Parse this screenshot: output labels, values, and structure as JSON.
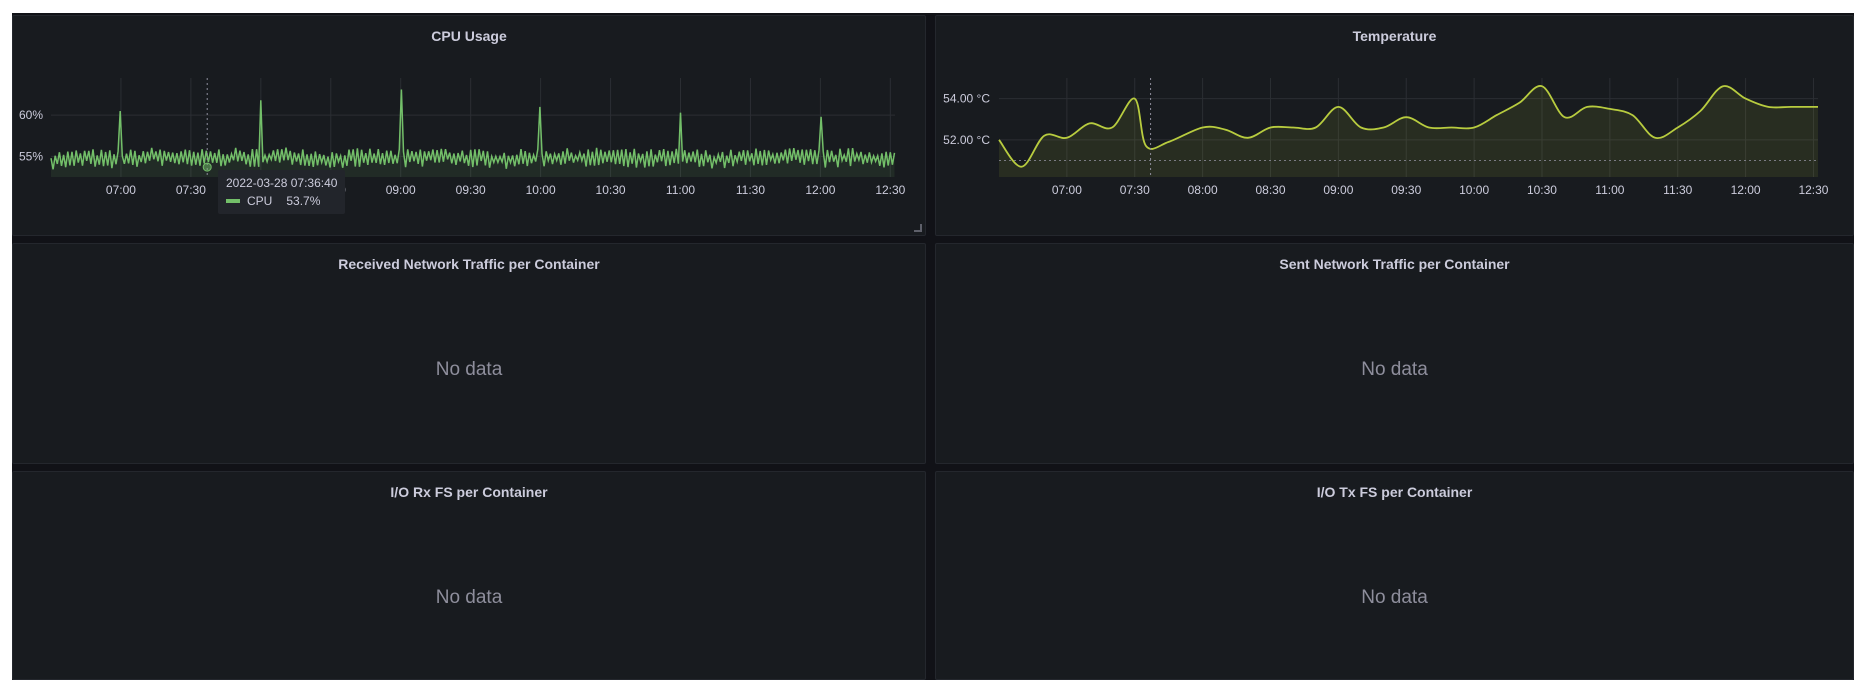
{
  "colors": {
    "cpu": "#73bf69",
    "temperature": "#b8cc3f",
    "background": "#111217",
    "panel": "#181b1f"
  },
  "x_ticks": [
    "07:00",
    "07:30",
    "08:00",
    "08:30",
    "09:00",
    "09:30",
    "10:00",
    "10:30",
    "11:00",
    "11:30",
    "12:00",
    "12:30"
  ],
  "panels": {
    "cpu": {
      "title": "CPU Usage",
      "tooltip": {
        "time": "2022-03-28 07:36:40",
        "series": "CPU",
        "value": "53.7%"
      }
    },
    "temperature": {
      "title": "Temperature"
    },
    "rx_net": {
      "title": "Received Network Traffic per Container",
      "empty": "No data"
    },
    "tx_net": {
      "title": "Sent Network Traffic per Container",
      "empty": "No data"
    },
    "io_rx": {
      "title": "I/O Rx FS per Container",
      "empty": "No data"
    },
    "io_tx": {
      "title": "I/O Tx FS per Container",
      "empty": "No data"
    }
  },
  "chart_data": [
    {
      "type": "line",
      "title": "CPU Usage",
      "y_ticks": [
        "60%",
        "55%"
      ],
      "ylim": [
        52.5,
        64.5
      ],
      "xlim": [
        "06:30",
        "12:32"
      ],
      "grid": true,
      "series": [
        {
          "name": "CPU",
          "x": [
            "06:30",
            "06:45",
            "07:00",
            "07:15",
            "07:30",
            "07:45",
            "08:00",
            "08:15",
            "08:30",
            "08:45",
            "09:00",
            "09:15",
            "09:30",
            "09:45",
            "10:00",
            "10:15",
            "10:30",
            "10:45",
            "11:00",
            "11:15",
            "11:30",
            "11:45",
            "12:00",
            "12:15",
            "12:30"
          ],
          "values": [
            54.5,
            54.8,
            54.6,
            55.0,
            54.7,
            54.9,
            54.8,
            55.1,
            54.6,
            54.9,
            54.7,
            55.0,
            54.8,
            54.6,
            54.9,
            54.8,
            55.0,
            54.7,
            54.9,
            54.6,
            54.8,
            55.0,
            54.7,
            54.9,
            54.6
          ],
          "noise": 2.5
        }
      ],
      "spikes": [
        {
          "x": "07:00",
          "value": 60.5
        },
        {
          "x": "08:00",
          "value": 61.8
        },
        {
          "x": "09:00",
          "value": 63.1
        },
        {
          "x": "10:00",
          "value": 61.0
        },
        {
          "x": "11:00",
          "value": 60.3
        },
        {
          "x": "12:00",
          "value": 59.8
        }
      ],
      "hover": {
        "x": "07:37",
        "value": 53.7
      }
    },
    {
      "type": "area",
      "title": "Temperature",
      "y_ticks": [
        "54.00 °C",
        "52.00 °C"
      ],
      "ylim": [
        50.2,
        55.0
      ],
      "xlim": [
        "06:30",
        "12:32"
      ],
      "grid": true,
      "threshold": 51.0,
      "series": [
        {
          "name": "Temperature",
          "x": [
            "06:30",
            "06:40",
            "06:50",
            "07:00",
            "07:10",
            "07:20",
            "07:30",
            "07:35",
            "07:45",
            "08:00",
            "08:10",
            "08:20",
            "08:30",
            "08:40",
            "08:50",
            "09:00",
            "09:10",
            "09:20",
            "09:30",
            "09:40",
            "09:50",
            "10:00",
            "10:10",
            "10:20",
            "10:30",
            "10:40",
            "10:50",
            "11:00",
            "11:10",
            "11:20",
            "11:30",
            "11:40",
            "11:50",
            "12:00",
            "12:10",
            "12:20",
            "12:32"
          ],
          "values": [
            52.0,
            50.7,
            52.2,
            52.1,
            52.8,
            52.6,
            54.0,
            51.7,
            51.9,
            52.6,
            52.5,
            52.1,
            52.6,
            52.6,
            52.6,
            53.6,
            52.6,
            52.6,
            53.1,
            52.6,
            52.6,
            52.6,
            53.2,
            53.8,
            54.6,
            53.1,
            53.6,
            53.5,
            53.2,
            52.1,
            52.6,
            53.4,
            54.6,
            54.0,
            53.6,
            53.6,
            53.6
          ]
        }
      ],
      "hover": {
        "x": "07:37"
      }
    }
  ]
}
